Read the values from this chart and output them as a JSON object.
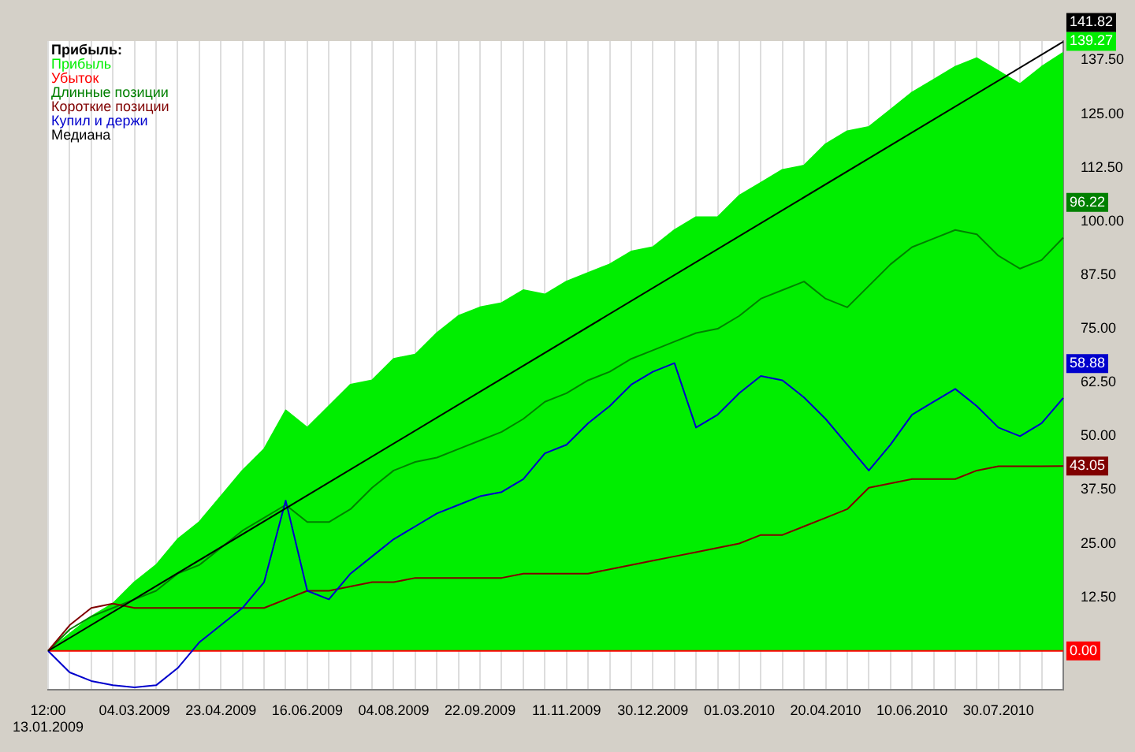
{
  "chart_data": {
    "type": "line",
    "legend_title": "Прибыль:",
    "legend": "top left",
    "grid": "x",
    "categories": [
      "12:00 13.01.2009",
      null,
      null,
      null,
      "04.03.2009",
      null,
      null,
      null,
      "23.04.2009",
      null,
      null,
      null,
      "16.06.2009",
      null,
      null,
      null,
      "04.08.2009",
      null,
      null,
      null,
      "22.09.2009",
      null,
      null,
      null,
      "11.11.2009",
      null,
      null,
      null,
      "30.12.2009",
      null,
      null,
      null,
      "01.03.2010",
      null,
      null,
      null,
      "20.04.2010",
      null,
      null,
      null,
      "10.06.2010",
      null,
      null,
      null,
      "30.07.2010",
      null,
      null,
      null
    ],
    "ylim": [
      -9,
      142
    ],
    "yticks": [
      {
        "value": 12.5,
        "label": "12.50"
      },
      {
        "value": 25,
        "label": "25.00"
      },
      {
        "value": 37.5,
        "label": "37.50"
      },
      {
        "value": 50,
        "label": "50.00"
      },
      {
        "value": 62.5,
        "label": "62.50"
      },
      {
        "value": 75,
        "label": "75.00"
      },
      {
        "value": 87.5,
        "label": "87.50"
      },
      {
        "value": 100,
        "label": "100.00"
      },
      {
        "value": 112.5,
        "label": "112.50"
      },
      {
        "value": 125,
        "label": "125.00"
      },
      {
        "value": 137.5,
        "label": "137.50"
      }
    ],
    "series": [
      {
        "name": "Прибыль",
        "type": "area",
        "color": "#00ee00",
        "values": [
          0,
          4,
          8,
          11,
          16,
          20,
          26,
          30,
          36,
          42,
          47,
          56,
          52,
          57,
          62,
          63,
          68,
          69,
          74,
          78,
          80,
          81,
          84,
          83,
          86,
          88,
          90,
          93,
          94,
          98,
          101,
          101,
          106,
          109,
          112,
          113,
          118,
          121,
          122,
          126,
          130,
          133,
          136,
          138,
          135,
          132,
          136,
          139.27
        ],
        "value_labels": [
          null,
          null,
          null,
          null,
          null,
          null,
          null,
          null,
          null,
          null,
          null,
          null,
          null,
          null,
          null,
          null,
          null,
          null,
          null,
          null,
          null,
          null,
          null,
          null,
          null,
          null,
          null,
          null,
          null,
          null,
          null,
          null,
          null,
          null,
          null,
          null,
          null,
          null,
          null,
          null,
          null,
          null,
          null,
          null,
          null,
          null,
          null,
          "139.27"
        ]
      },
      {
        "name": "Убыток",
        "type": "line",
        "color": "#ff0000",
        "values": [
          0,
          0,
          0,
          0,
          0,
          0,
          0,
          0,
          0,
          0,
          0,
          0,
          0,
          0,
          0,
          0,
          0,
          0,
          0,
          0,
          0,
          0,
          0,
          0,
          0,
          0,
          0,
          0,
          0,
          0,
          0,
          0,
          0,
          0,
          0,
          0,
          0,
          0,
          0,
          0,
          0,
          0,
          0,
          0,
          0,
          0,
          0,
          0
        ],
        "value_labels": [
          null,
          null,
          null,
          null,
          null,
          null,
          null,
          null,
          null,
          null,
          null,
          null,
          null,
          null,
          null,
          null,
          null,
          null,
          null,
          null,
          null,
          null,
          null,
          null,
          null,
          null,
          null,
          null,
          null,
          null,
          null,
          null,
          null,
          null,
          null,
          null,
          null,
          null,
          null,
          null,
          null,
          null,
          null,
          null,
          null,
          null,
          null,
          "0.00"
        ]
      },
      {
        "name": "Длинные позиции",
        "type": "line",
        "color": "#008000",
        "values": [
          0,
          5,
          8,
          10,
          12,
          14,
          18,
          20,
          24,
          28,
          31,
          34,
          30,
          30,
          33,
          38,
          42,
          44,
          45,
          47,
          49,
          51,
          54,
          58,
          60,
          63,
          65,
          68,
          70,
          72,
          74,
          75,
          78,
          82,
          84,
          86,
          82,
          80,
          85,
          90,
          94,
          96,
          98,
          97,
          92,
          89,
          91,
          96.22
        ],
        "value_labels": [
          null,
          null,
          null,
          null,
          null,
          null,
          null,
          null,
          null,
          null,
          null,
          null,
          null,
          null,
          null,
          null,
          null,
          null,
          null,
          null,
          null,
          null,
          null,
          null,
          null,
          null,
          null,
          null,
          null,
          null,
          null,
          null,
          null,
          null,
          null,
          null,
          null,
          null,
          null,
          null,
          null,
          null,
          null,
          null,
          null,
          null,
          null,
          "96.22"
        ]
      },
      {
        "name": "Короткие позиции",
        "type": "line",
        "color": "#800000",
        "values": [
          0,
          6,
          10,
          11,
          10,
          10,
          10,
          10,
          10,
          10,
          10,
          12,
          14,
          14,
          15,
          16,
          16,
          17,
          17,
          17,
          17,
          17,
          18,
          18,
          18,
          18,
          19,
          20,
          21,
          22,
          23,
          24,
          25,
          27,
          27,
          29,
          31,
          33,
          38,
          39,
          40,
          40,
          40,
          42,
          43,
          43,
          43,
          43.05
        ],
        "value_labels": [
          null,
          null,
          null,
          null,
          null,
          null,
          null,
          null,
          null,
          null,
          null,
          null,
          null,
          null,
          null,
          null,
          null,
          null,
          null,
          null,
          null,
          null,
          null,
          null,
          null,
          null,
          null,
          null,
          null,
          null,
          null,
          null,
          null,
          null,
          null,
          null,
          null,
          null,
          null,
          null,
          null,
          null,
          null,
          null,
          null,
          null,
          null,
          "43.05"
        ]
      },
      {
        "name": "Купил и держи",
        "type": "line",
        "color": "#0000cc",
        "values": [
          0,
          -5,
          -7,
          -8,
          -8.5,
          -8,
          -4,
          2,
          6,
          10,
          16,
          35,
          14,
          12,
          18,
          22,
          26,
          29,
          32,
          34,
          36,
          37,
          40,
          46,
          48,
          53,
          57,
          62,
          65,
          67,
          52,
          55,
          60,
          64,
          63,
          59,
          54,
          48,
          42,
          48,
          55,
          58,
          61,
          57,
          52,
          50,
          53,
          58.88
        ],
        "value_labels": [
          null,
          null,
          null,
          null,
          null,
          null,
          null,
          null,
          null,
          null,
          null,
          null,
          null,
          null,
          null,
          null,
          null,
          null,
          null,
          null,
          null,
          null,
          null,
          null,
          null,
          null,
          null,
          null,
          null,
          null,
          null,
          null,
          null,
          null,
          null,
          null,
          null,
          null,
          null,
          null,
          null,
          null,
          null,
          null,
          null,
          null,
          null,
          "58.88"
        ]
      },
      {
        "name": "Медиана",
        "type": "line",
        "color": "#000000",
        "values": [
          0,
          null,
          null,
          null,
          null,
          null,
          null,
          null,
          null,
          null,
          null,
          null,
          null,
          null,
          null,
          null,
          null,
          null,
          null,
          null,
          null,
          null,
          null,
          null,
          null,
          null,
          null,
          null,
          null,
          null,
          null,
          null,
          null,
          null,
          null,
          null,
          null,
          null,
          null,
          null,
          null,
          null,
          null,
          null,
          null,
          null,
          null,
          141.82
        ],
        "value_labels": [
          null,
          null,
          null,
          null,
          null,
          null,
          null,
          null,
          null,
          null,
          null,
          null,
          null,
          null,
          null,
          null,
          null,
          null,
          null,
          null,
          null,
          null,
          null,
          null,
          null,
          null,
          null,
          null,
          null,
          null,
          null,
          null,
          null,
          null,
          null,
          null,
          null,
          null,
          null,
          null,
          null,
          null,
          null,
          null,
          null,
          null,
          null,
          "141.82"
        ]
      }
    ]
  }
}
